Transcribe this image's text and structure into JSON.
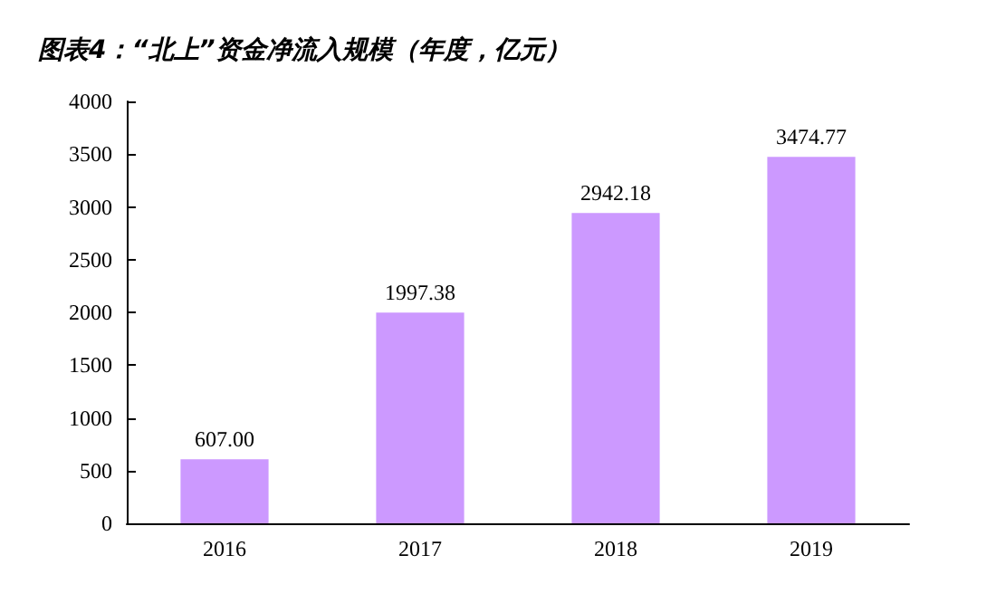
{
  "chart_data": {
    "type": "bar",
    "title": "图表4：“北上”资金净流入规模（年度，亿元）",
    "categories": [
      "2016",
      "2017",
      "2018",
      "2019"
    ],
    "values": [
      607.0,
      1997.38,
      2942.18,
      3474.77
    ],
    "value_labels": [
      "607.00",
      "1997.38",
      "2942.18",
      "3474.77"
    ],
    "color": "#cc99ff",
    "ylim": [
      0,
      4000
    ],
    "yticks": [
      0,
      500,
      1000,
      1500,
      2000,
      2500,
      3000,
      3500,
      4000
    ],
    "grid": false
  }
}
